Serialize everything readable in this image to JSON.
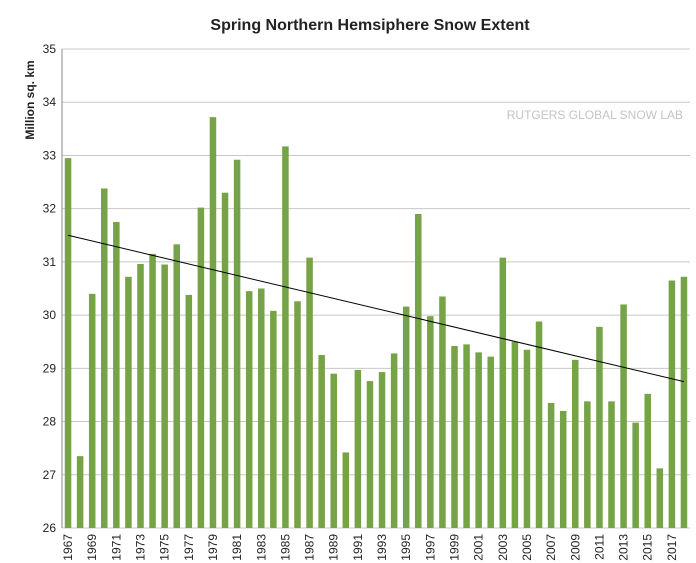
{
  "chart_data": {
    "type": "bar",
    "title": "Spring Northern Hemsiphere Snow Extent",
    "y_label": "Million sq. km",
    "annotation": "RUTGERS GLOBAL SNOW LAB",
    "categories": [
      "1967",
      null,
      "1969",
      null,
      "1971",
      null,
      "1973",
      null,
      "1975",
      null,
      "1977",
      null,
      "1979",
      null,
      "1981",
      null,
      "1983",
      null,
      "1985",
      null,
      "1987",
      null,
      "1989",
      null,
      "1991",
      null,
      "1993",
      null,
      "1995",
      null,
      "1997",
      null,
      "1999",
      null,
      "2001",
      null,
      "2003",
      null,
      "2005",
      null,
      "2007",
      null,
      "2009",
      null,
      "2011",
      null,
      "2013",
      null,
      "2015",
      null,
      "2017",
      null
    ],
    "values": [
      32.95,
      27.35,
      30.4,
      32.38,
      31.75,
      30.72,
      30.96,
      31.15,
      30.95,
      31.33,
      30.38,
      32.02,
      33.72,
      32.3,
      32.92,
      30.45,
      30.5,
      30.08,
      33.17,
      30.26,
      31.08,
      29.25,
      28.9,
      27.42,
      28.97,
      28.76,
      28.93,
      29.28,
      30.16,
      31.9,
      29.98,
      30.35,
      29.42,
      29.45,
      29.3,
      29.22,
      31.08,
      29.5,
      29.35,
      29.88,
      28.35,
      28.2,
      29.16,
      28.38,
      29.78,
      28.38,
      30.2,
      27.98,
      28.52,
      27.12,
      30.65,
      30.72
    ],
    "color": "#77a347",
    "trend": [
      31.5,
      28.75
    ],
    "ylim": [
      26,
      35
    ],
    "yticks": [
      26,
      27,
      28,
      29,
      30,
      31,
      32,
      33,
      34,
      35
    ],
    "grid": true
  }
}
